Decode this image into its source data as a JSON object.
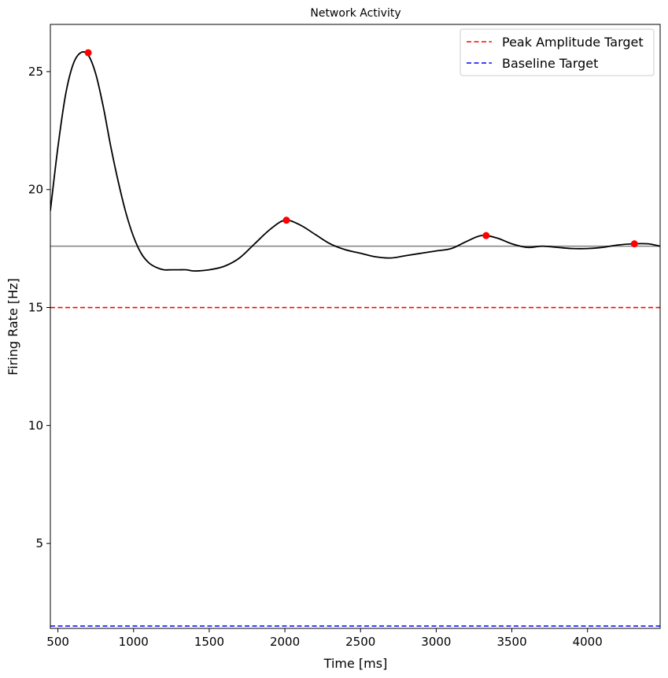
{
  "chart_data": {
    "type": "line",
    "title": "Network Activity",
    "xlabel": "Time [ms]",
    "ylabel": "Firing Rate [Hz]",
    "xlim": [
      450,
      4480
    ],
    "ylim": [
      1.4,
      27.0
    ],
    "xticks": [
      500,
      1000,
      1500,
      2000,
      2500,
      3000,
      3500,
      4000
    ],
    "yticks": [
      5,
      10,
      15,
      20,
      25
    ],
    "grid": false,
    "legend_position": "top-right",
    "series": [
      {
        "name": "",
        "color": "#000000",
        "x": [
          450,
          500,
          550,
          600,
          650,
          700,
          750,
          800,
          850,
          900,
          950,
          1000,
          1050,
          1100,
          1150,
          1200,
          1250,
          1300,
          1350,
          1400,
          1500,
          1600,
          1700,
          1800,
          1900,
          2000,
          2100,
          2200,
          2300,
          2400,
          2500,
          2600,
          2700,
          2800,
          2900,
          3000,
          3100,
          3200,
          3300,
          3400,
          3500,
          3600,
          3700,
          3800,
          3900,
          4000,
          4100,
          4200,
          4300,
          4400,
          4480
        ],
        "y": [
          19.1,
          21.8,
          24.0,
          25.3,
          25.8,
          25.7,
          24.9,
          23.5,
          21.8,
          20.3,
          19.0,
          18.0,
          17.3,
          16.9,
          16.7,
          16.6,
          16.6,
          16.6,
          16.6,
          16.55,
          16.6,
          16.75,
          17.1,
          17.7,
          18.3,
          18.7,
          18.5,
          18.1,
          17.7,
          17.45,
          17.3,
          17.15,
          17.1,
          17.2,
          17.3,
          17.4,
          17.5,
          17.8,
          18.05,
          17.95,
          17.7,
          17.55,
          17.6,
          17.55,
          17.5,
          17.5,
          17.55,
          17.65,
          17.7,
          17.7,
          17.6
        ]
      }
    ],
    "peaks": {
      "color": "#ff0000",
      "x": [
        700,
        2010,
        3330,
        4310
      ],
      "y": [
        25.8,
        18.7,
        18.05,
        17.7
      ]
    },
    "hlines": [
      {
        "name": "Peak Amplitude Target",
        "y": 15.0,
        "color": "#ff0000",
        "style": "dashed",
        "in_legend": true
      },
      {
        "name": "Baseline Target",
        "y": 1.5,
        "color": "#0000ff",
        "style": "dashed",
        "in_legend": true
      },
      {
        "name": "",
        "y": 17.6,
        "color": "#808080",
        "style": "solid",
        "in_legend": false
      }
    ]
  }
}
